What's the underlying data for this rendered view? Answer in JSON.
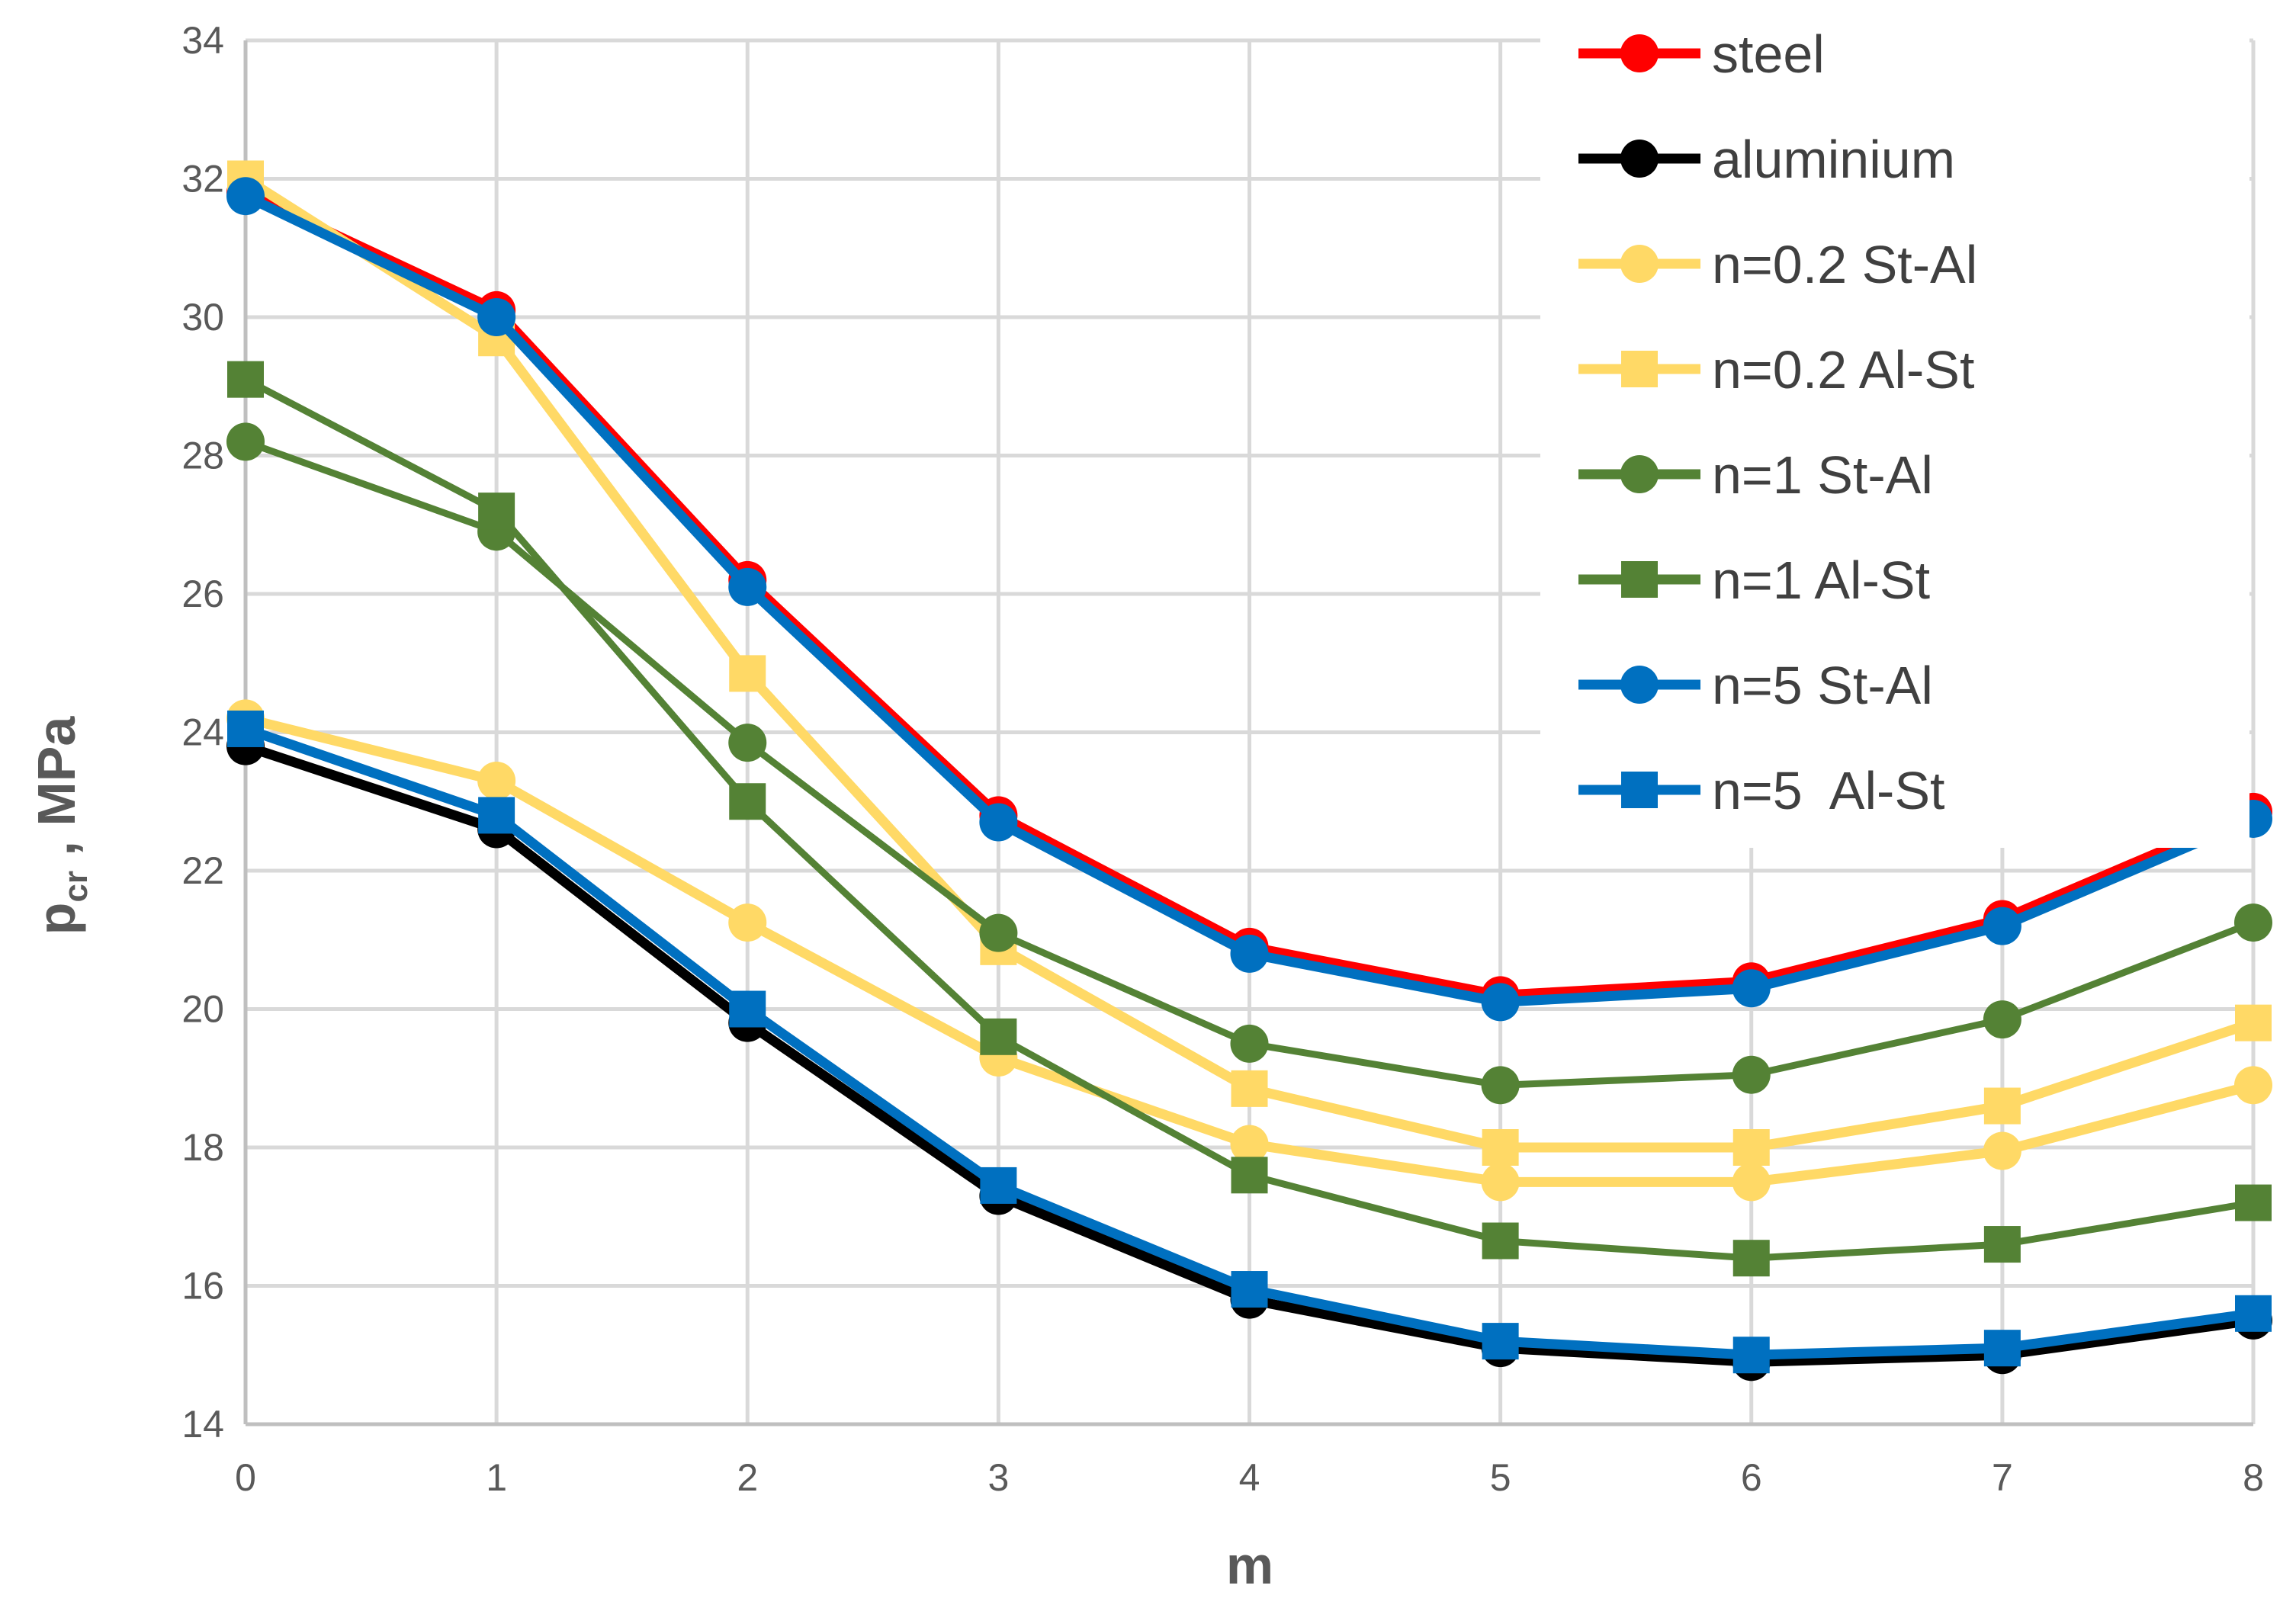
{
  "chart_data": {
    "type": "line",
    "title": "",
    "xlabel": "m",
    "ylabel_main": "p",
    "ylabel_sub": "cr",
    "ylabel_rest": " , MPa",
    "x": [
      0,
      1,
      2,
      3,
      4,
      5,
      6,
      7,
      8
    ],
    "xlim": [
      0,
      8
    ],
    "ylim": [
      14,
      34
    ],
    "xticks": [
      "0",
      "1",
      "2",
      "3",
      "4",
      "5",
      "6",
      "7",
      "8"
    ],
    "yticks": [
      "14",
      "16",
      "18",
      "20",
      "22",
      "24",
      "26",
      "28",
      "30",
      "32",
      "34"
    ],
    "grid": true,
    "legend_position": "top-right",
    "series": [
      {
        "name": "steel",
        "color": "#FF0000",
        "marker": "circle",
        "values": [
          31.8,
          30.1,
          26.2,
          22.8,
          20.9,
          20.2,
          20.4,
          21.3,
          22.85
        ]
      },
      {
        "name": "aluminium",
        "color": "#000000",
        "marker": "circle",
        "values": [
          23.8,
          22.6,
          19.8,
          17.3,
          15.8,
          15.1,
          14.9,
          15.0,
          15.5
        ]
      },
      {
        "name": "n=0.2 St-Al",
        "color": "#FFD966",
        "marker": "circle",
        "values": [
          24.2,
          23.3,
          21.25,
          19.3,
          18.05,
          17.5,
          17.5,
          17.95,
          18.9
        ]
      },
      {
        "name": "n=0.2 Al-St",
        "color": "#FFD966",
        "marker": "square",
        "values": [
          32.0,
          29.7,
          24.85,
          20.9,
          18.85,
          18.0,
          18.0,
          18.6,
          19.8
        ]
      },
      {
        "name": "n=1 St-Al",
        "color": "#548235",
        "marker": "circle",
        "values": [
          28.2,
          26.9,
          23.85,
          21.1,
          19.5,
          18.9,
          19.05,
          19.85,
          21.25
        ]
      },
      {
        "name": "n=1 Al-St",
        "color": "#548235",
        "marker": "square",
        "values": [
          29.1,
          27.2,
          23.0,
          19.6,
          17.6,
          16.65,
          16.4,
          16.6,
          17.2
        ]
      },
      {
        "name": "n=5 St-Al",
        "color": "#0070C0",
        "marker": "circle",
        "values": [
          31.75,
          30.0,
          26.1,
          22.7,
          20.8,
          20.1,
          20.3,
          21.2,
          22.75
        ]
      },
      {
        "name": "n=5  Al-St",
        "color": "#0070C0",
        "marker": "square",
        "values": [
          24.05,
          22.8,
          20.0,
          17.45,
          15.95,
          15.2,
          15.0,
          15.1,
          15.6
        ]
      }
    ]
  }
}
